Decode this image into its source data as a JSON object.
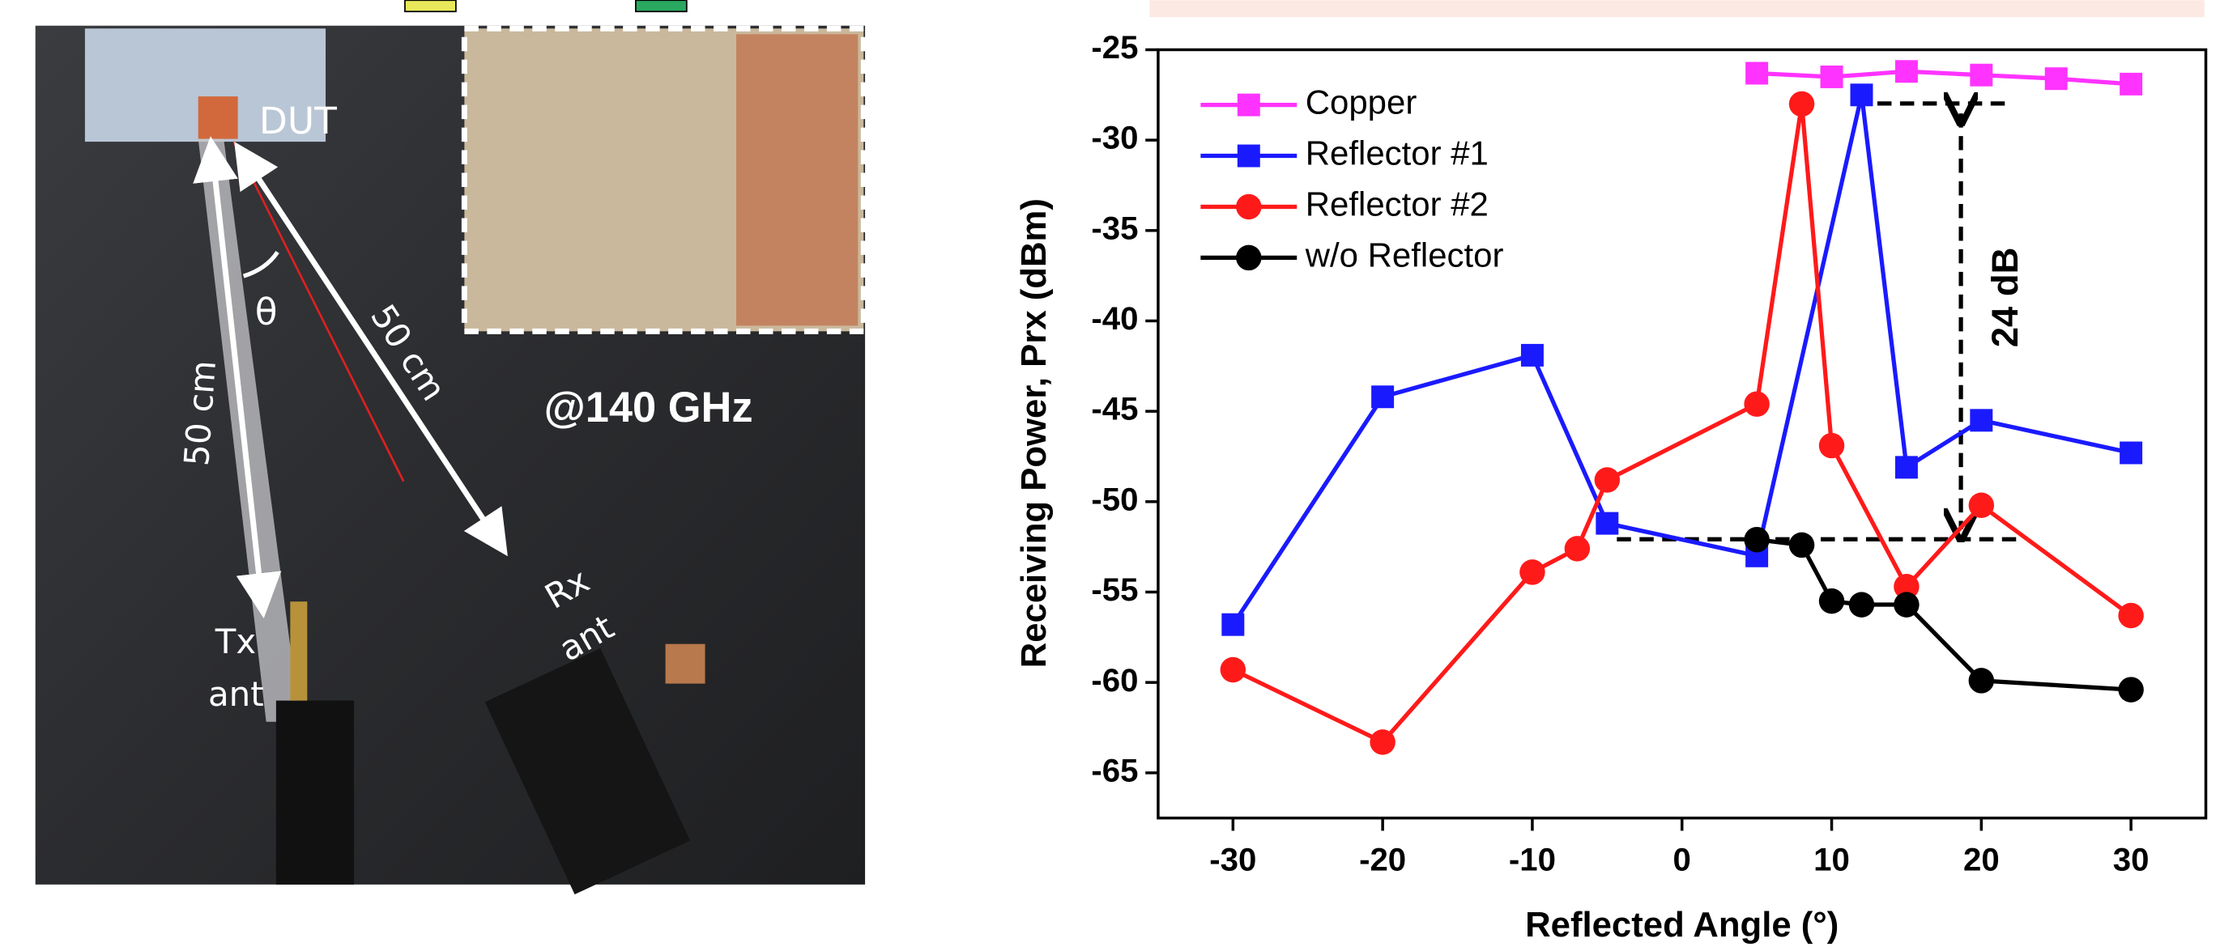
{
  "photo_labels": {
    "dut": "DUT",
    "theta": "θ",
    "tx_distance": "50 cm",
    "rx_distance": "50 cm",
    "frequency": "@140 GHz",
    "tx_antenna": [
      "Tx",
      "ant"
    ],
    "rx_antenna": [
      "Rx",
      "ant"
    ]
  },
  "chart_data": {
    "type": "line",
    "xlabel": "Reflected Angle (°)",
    "ylabel": "Receiving Power, Prx (dBm)",
    "annotation": "24 dB",
    "xlim": [
      -35,
      35
    ],
    "xticks": [
      -30,
      -20,
      -10,
      0,
      10,
      20,
      30
    ],
    "ylim": [
      -67.5,
      -25
    ],
    "yticks": [
      -65,
      -60,
      -55,
      -50,
      -45,
      -40,
      -35,
      -30,
      -25
    ],
    "legend": "upper left",
    "series": [
      {
        "name": "Copper",
        "color": "#ff33ff",
        "marker": "square",
        "x": [
          5,
          10,
          15,
          20,
          25,
          30
        ],
        "values": [
          -26.3,
          -26.5,
          -26.2,
          -26.4,
          -26.6,
          -26.9
        ]
      },
      {
        "name": "Reflector #1",
        "color": "#1a1aff",
        "marker": "square",
        "x": [
          -30,
          -20,
          -10,
          -5,
          5,
          12,
          15,
          20,
          30
        ],
        "values": [
          -56.8,
          -44.2,
          -41.9,
          -51.2,
          -53.0,
          -27.5,
          -48.1,
          -45.5,
          -47.3
        ]
      },
      {
        "name": "Reflector #2",
        "color": "#ff1a1a",
        "marker": "circle",
        "x": [
          -30,
          -20,
          -10,
          -7,
          -5,
          5,
          8,
          10,
          15,
          20,
          30
        ],
        "values": [
          -59.3,
          -63.3,
          -53.9,
          -52.6,
          -48.8,
          -44.6,
          -28.0,
          -46.9,
          -54.7,
          -50.2,
          -56.3
        ]
      },
      {
        "name": "w/o Reflector",
        "color": "#000000",
        "marker": "circle",
        "x": [
          5,
          8,
          10,
          12,
          15,
          20,
          30
        ],
        "values": [
          -52.1,
          -52.4,
          -55.5,
          -55.7,
          -55.7,
          -59.9,
          -60.4
        ]
      }
    ]
  }
}
